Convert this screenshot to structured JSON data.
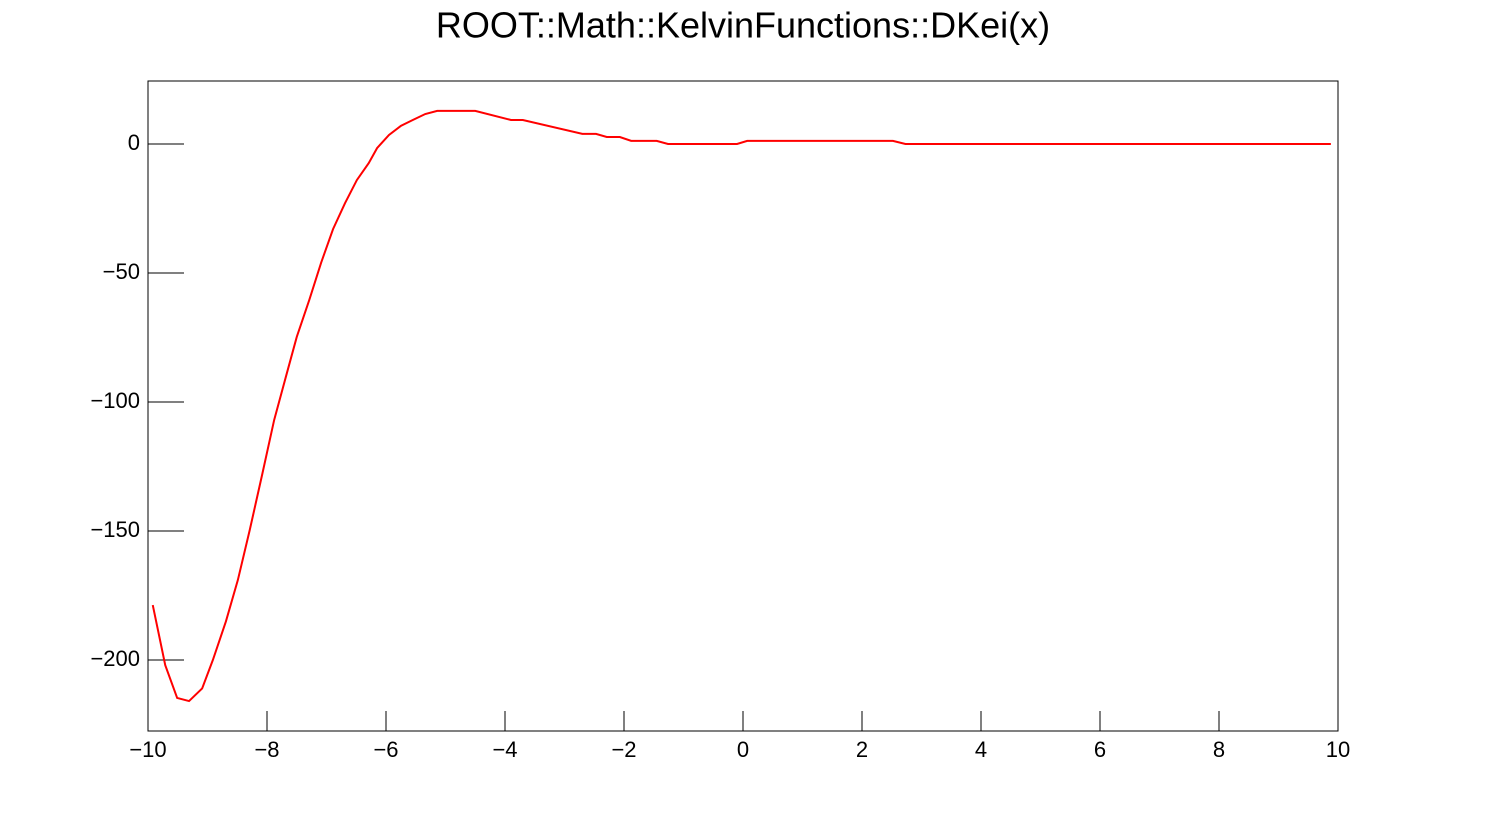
{
  "chart_data": {
    "type": "line",
    "title": "ROOT::Math::KelvinFunctions::DKei(x)",
    "x": [
      -9.92,
      -9.71,
      -9.51,
      -9.31,
      -9.09,
      -8.91,
      -8.69,
      -8.49,
      -8.29,
      -8.08,
      -7.88,
      -7.68,
      -7.5,
      -7.29,
      -7.09,
      -6.89,
      -6.69,
      -6.49,
      -6.29,
      -6.15,
      -5.95,
      -5.75,
      -5.55,
      -5.34,
      -5.14,
      -4.5,
      -3.9,
      -3.7,
      -2.7,
      -2.47,
      -2.29,
      -2.07,
      -1.88,
      -1.45,
      -1.26,
      -0.1,
      0.07,
      2.52,
      2.73,
      9.88
    ],
    "series": [
      {
        "name": "DKei",
        "color": "#ff0000",
        "values": [
          -178.7,
          -202,
          -214.7,
          -215.9,
          -211,
          -200,
          -185,
          -169,
          -149.6,
          -128,
          -107,
          -90,
          -74.8,
          -60.5,
          -46,
          -33,
          -23,
          -14,
          -7.4,
          -1.6,
          3.5,
          7,
          9.3,
          11.6,
          12.8,
          12.8,
          9.3,
          9.3,
          3.9,
          3.9,
          2.7,
          2.7,
          1.2,
          1.2,
          0,
          0,
          1.2,
          1.2,
          0,
          0
        ]
      }
    ],
    "xlim": [
      -10,
      10
    ],
    "xticks": [
      {
        "value": -10,
        "label": "−10"
      },
      {
        "value": -8,
        "label": "−8"
      },
      {
        "value": -6,
        "label": "−6"
      },
      {
        "value": -4,
        "label": "−4"
      },
      {
        "value": -2,
        "label": "−2"
      },
      0,
      2,
      4,
      6,
      8,
      10
    ],
    "ylim": [
      -227.5,
      24.4
    ],
    "yticks": [
      {
        "value": -200,
        "label": "−200"
      },
      {
        "value": -150,
        "label": "−150"
      },
      {
        "value": -100,
        "label": "−100"
      },
      {
        "value": -50,
        "label": "−50"
      },
      0
    ],
    "grid": false
  }
}
